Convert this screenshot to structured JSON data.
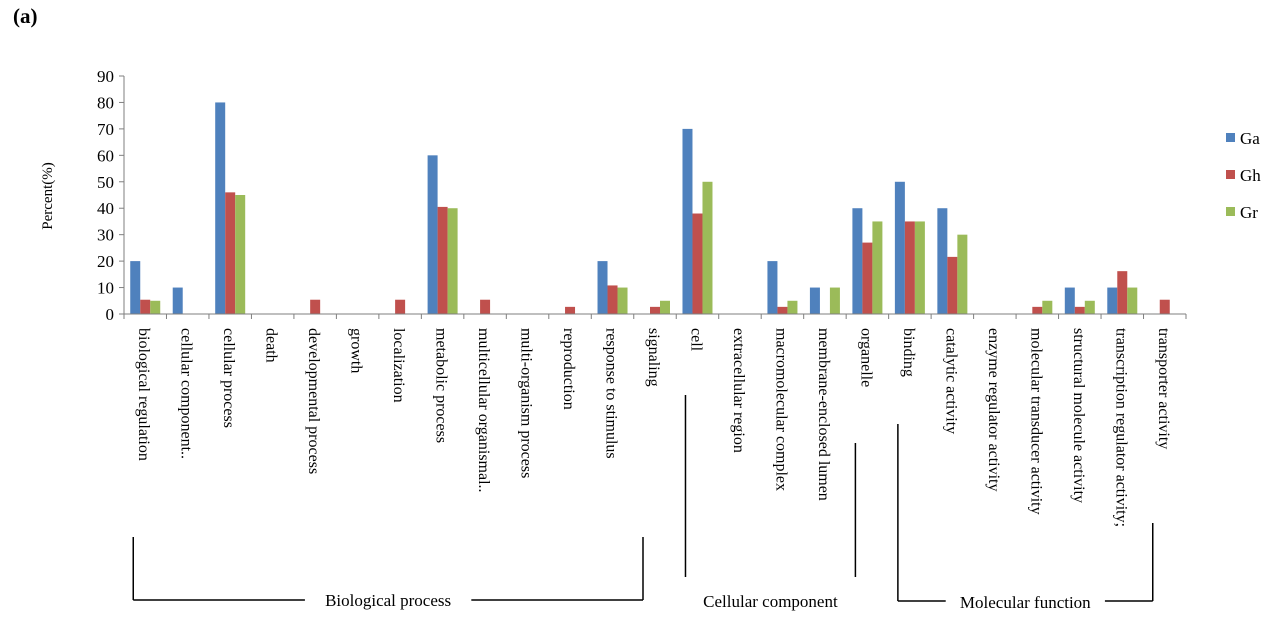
{
  "panel_label": "(a)",
  "chart_data": {
    "type": "bar",
    "title": "",
    "xlabel": "",
    "ylabel": "Percent(%)",
    "ylim": [
      0,
      90
    ],
    "yticks": [
      0,
      10,
      20,
      30,
      40,
      50,
      60,
      70,
      80,
      90
    ],
    "grid": false,
    "legend_position": "right",
    "categories": [
      "biological regulation",
      "cellular component..",
      "cellular process",
      "death",
      "developmental process",
      "growth",
      "localization",
      "metabolic process",
      "multicellular organismal..",
      "multi-organism process",
      "reproduction",
      "response to stimulus",
      "signaling",
      "cell",
      "extracellular region",
      "macromolecular complex",
      "membrane-enclosed lumen",
      "organelle",
      "binding",
      "catalytic activity",
      "enzyme regulator activity",
      "molecular transducer activity",
      "structural molecule activity",
      "transcription regulator activity;",
      "transporter activity"
    ],
    "series": [
      {
        "name": "Ga",
        "color": "#4f81bd",
        "values": [
          20,
          10,
          80,
          0,
          0,
          0,
          0,
          60,
          0,
          0,
          0,
          20,
          0,
          70,
          0,
          20,
          10,
          40,
          50,
          40,
          0,
          0,
          10,
          10,
          0
        ]
      },
      {
        "name": "Gh",
        "color": "#c0504d",
        "values": [
          5.4,
          0,
          46,
          0,
          5.4,
          0,
          5.4,
          40.5,
          5.4,
          0,
          2.7,
          10.8,
          2.7,
          38,
          0,
          2.7,
          0,
          27,
          35,
          21.6,
          0,
          2.7,
          2.7,
          16.2,
          5.4
        ]
      },
      {
        "name": "Gr",
        "color": "#9bbb59",
        "values": [
          5,
          0,
          45,
          0,
          0,
          0,
          0,
          40,
          0,
          0,
          0,
          10,
          5,
          50,
          0,
          5,
          10,
          35,
          35,
          30,
          0,
          5,
          5,
          10,
          0
        ]
      }
    ],
    "groups": [
      {
        "label": "Biological process",
        "start": 0,
        "end": 12
      },
      {
        "label": "Cellular component",
        "start": 13,
        "end": 17
      },
      {
        "label": "Molecular function",
        "start": 18,
        "end": 24
      }
    ]
  }
}
